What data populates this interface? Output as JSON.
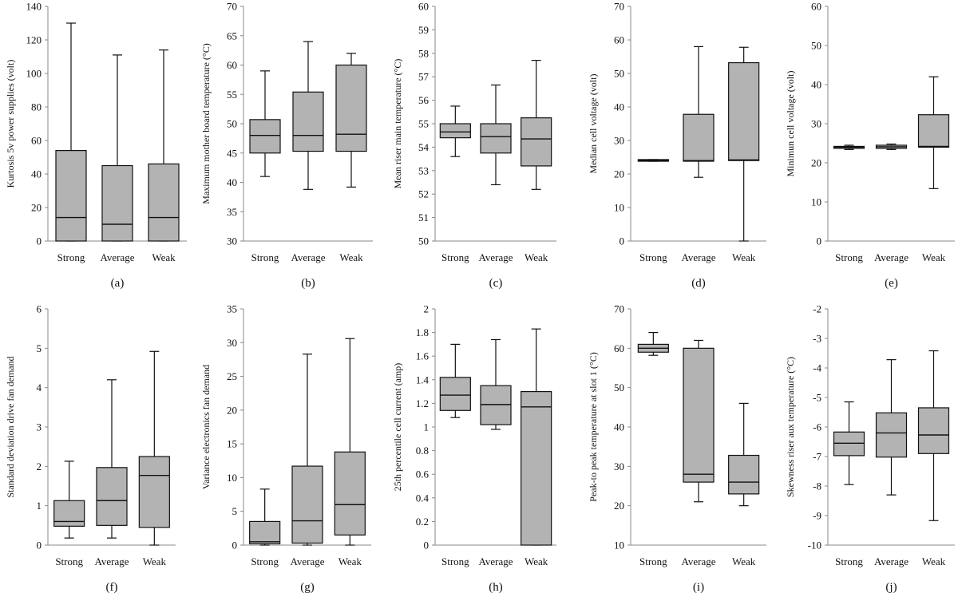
{
  "colors": {
    "box_fill": "#b3b3b3",
    "stroke": "#111111",
    "background": "#ffffff"
  },
  "chart_data": [
    {
      "type": "boxplot",
      "label": "(a)",
      "ylabel": "Kurtosis 5v power supplies (volt)",
      "ylim": [
        0,
        140
      ],
      "yticks": [
        "0",
        "20",
        "40",
        "60",
        "80",
        "100",
        "120",
        "140"
      ],
      "categories": [
        "Strong",
        "Average",
        "Weak"
      ],
      "boxes": [
        {
          "min": 0,
          "q1": 0,
          "median": 14,
          "q3": 54,
          "max": 130
        },
        {
          "min": 0,
          "q1": 0,
          "median": 10,
          "q3": 45,
          "max": 111
        },
        {
          "min": 0,
          "q1": 0,
          "median": 14,
          "q3": 46,
          "max": 114
        }
      ]
    },
    {
      "type": "boxplot",
      "label": "(b)",
      "ylabel": "Maximum mother board temperature (°C)",
      "ylim": [
        30,
        70
      ],
      "yticks": [
        "30",
        "35",
        "40",
        "45",
        "50",
        "55",
        "60",
        "65",
        "70"
      ],
      "categories": [
        "Strong",
        "Average",
        "Weak"
      ],
      "boxes": [
        {
          "min": 41,
          "q1": 45,
          "median": 48,
          "q3": 50.7,
          "max": 59
        },
        {
          "min": 38.8,
          "q1": 45.3,
          "median": 48,
          "q3": 55.4,
          "max": 64
        },
        {
          "min": 39.2,
          "q1": 45.3,
          "median": 48.2,
          "q3": 60,
          "max": 62
        }
      ]
    },
    {
      "type": "boxplot",
      "label": "(c)",
      "ylabel": "Mean riser main temperature (°C)",
      "ylim": [
        50,
        60
      ],
      "yticks": [
        "50",
        "51",
        "52",
        "53",
        "54",
        "55",
        "56",
        "57",
        "58",
        "59",
        "60"
      ],
      "categories": [
        "Strong",
        "Average",
        "Weak"
      ],
      "boxes": [
        {
          "min": 53.6,
          "q1": 54.4,
          "median": 54.65,
          "q3": 55,
          "max": 55.75
        },
        {
          "min": 52.4,
          "q1": 53.75,
          "median": 54.45,
          "q3": 55,
          "max": 56.65
        },
        {
          "min": 52.2,
          "q1": 53.2,
          "median": 54.35,
          "q3": 55.25,
          "max": 57.7
        }
      ]
    },
    {
      "type": "boxplot",
      "label": "(d)",
      "ylabel": "Median cell voltage (volt)",
      "ylim": [
        0,
        70
      ],
      "yticks": [
        "0",
        "10",
        "20",
        "30",
        "40",
        "50",
        "60",
        "70"
      ],
      "categories": [
        "Strong",
        "Average",
        "Weak"
      ],
      "boxes": [
        {
          "min": 23.8,
          "q1": 23.8,
          "median": 24,
          "q3": 24.3,
          "max": 24.3
        },
        {
          "min": 19,
          "q1": 23.8,
          "median": 24,
          "q3": 37.8,
          "max": 58
        },
        {
          "min": 0,
          "q1": 24,
          "median": 24.2,
          "q3": 53.2,
          "max": 57.8
        }
      ]
    },
    {
      "type": "boxplot",
      "label": "(e)",
      "ylabel": "Minimun cell voltage (volt)",
      "ylim": [
        0,
        60
      ],
      "yticks": [
        "0",
        "10",
        "20",
        "30",
        "40",
        "50",
        "60"
      ],
      "categories": [
        "Strong",
        "Average",
        "Weak"
      ],
      "boxes": [
        {
          "min": 23.4,
          "q1": 23.7,
          "median": 24,
          "q3": 24.2,
          "max": 24.5
        },
        {
          "min": 23.4,
          "q1": 23.7,
          "median": 24.1,
          "q3": 24.5,
          "max": 24.8
        },
        {
          "min": 13.4,
          "q1": 24,
          "median": 24.2,
          "q3": 32.3,
          "max": 42
        }
      ]
    },
    {
      "type": "boxplot",
      "label": "(f)",
      "ylabel": "Standard deviation drive fan demand",
      "ylim": [
        0,
        6
      ],
      "yticks": [
        "0",
        "1",
        "2",
        "3",
        "4",
        "5",
        "6"
      ],
      "categories": [
        "Strong",
        "Average",
        "Weak"
      ],
      "boxes": [
        {
          "min": 0.18,
          "q1": 0.48,
          "median": 0.6,
          "q3": 1.13,
          "max": 2.13
        },
        {
          "min": 0.18,
          "q1": 0.5,
          "median": 1.13,
          "q3": 1.97,
          "max": 4.2
        },
        {
          "min": 0,
          "q1": 0.45,
          "median": 1.77,
          "q3": 2.25,
          "max": 4.92
        }
      ]
    },
    {
      "type": "boxplot",
      "label": "(g)",
      "ylabel": "Variance electronics fan demand",
      "ylim": [
        0,
        35
      ],
      "yticks": [
        "0",
        "5",
        "10",
        "15",
        "20",
        "25",
        "30",
        "35"
      ],
      "categories": [
        "Strong",
        "Average",
        "Weak"
      ],
      "boxes": [
        {
          "min": 0,
          "q1": 0.2,
          "median": 0.5,
          "q3": 3.5,
          "max": 8.3
        },
        {
          "min": 0,
          "q1": 0.3,
          "median": 3.6,
          "q3": 11.7,
          "max": 28.3
        },
        {
          "min": 0,
          "q1": 1.5,
          "median": 6,
          "q3": 13.8,
          "max": 30.6
        }
      ]
    },
    {
      "type": "boxplot",
      "label": "(h)",
      "ylabel": "25th percentile cell current (amp)",
      "ylim": [
        0,
        2
      ],
      "yticks": [
        "0",
        "0.2",
        "0.4",
        "0.6",
        "0.8",
        "1",
        "1.2",
        "1.4",
        "1.6",
        "1.8",
        "2"
      ],
      "categories": [
        "Strong",
        "Average",
        "Weak"
      ],
      "boxes": [
        {
          "min": 1.08,
          "q1": 1.14,
          "median": 1.27,
          "q3": 1.42,
          "max": 1.7
        },
        {
          "min": 0.98,
          "q1": 1.02,
          "median": 1.19,
          "q3": 1.35,
          "max": 1.74
        },
        {
          "min": 0,
          "q1": 0,
          "median": 1.17,
          "q3": 1.3,
          "max": 1.83
        }
      ]
    },
    {
      "type": "boxplot",
      "label": "(i)",
      "ylabel": "Peak-to peak temperature at slot 1 (°C)",
      "ylim": [
        10,
        70
      ],
      "yticks": [
        "10",
        "20",
        "30",
        "40",
        "50",
        "60",
        "70"
      ],
      "categories": [
        "Strong",
        "Average",
        "Weak"
      ],
      "boxes": [
        {
          "min": 58.2,
          "q1": 59,
          "median": 60,
          "q3": 61,
          "max": 64
        },
        {
          "min": 21,
          "q1": 26,
          "median": 28,
          "q3": 60,
          "max": 62
        },
        {
          "min": 20,
          "q1": 23,
          "median": 26,
          "q3": 32.8,
          "max": 46
        }
      ]
    },
    {
      "type": "boxplot",
      "label": "(j)",
      "ylabel": "Skewness riser aux temperature (°C)",
      "ylim": [
        -10,
        -2
      ],
      "yticks": [
        "-10",
        "-9",
        "-8",
        "-7",
        "-6",
        "-5",
        "-4",
        "-3",
        "-2"
      ],
      "categories": [
        "Strong",
        "Average",
        "Weak"
      ],
      "boxes": [
        {
          "min": -7.95,
          "q1": -6.97,
          "median": -6.55,
          "q3": -6.17,
          "max": -5.15
        },
        {
          "min": -8.3,
          "q1": -7.02,
          "median": -6.2,
          "q3": -5.52,
          "max": -3.72
        },
        {
          "min": -9.17,
          "q1": -6.9,
          "median": -6.27,
          "q3": -5.35,
          "max": -3.42
        }
      ]
    }
  ]
}
